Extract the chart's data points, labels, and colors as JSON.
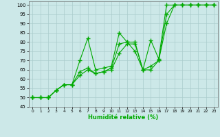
{
  "xlabel": "Humidité relative (%)",
  "background_color": "#cce8e8",
  "grid_color": "#aacccc",
  "line_color": "#00aa00",
  "xlim": [
    -0.5,
    23.5
  ],
  "ylim": [
    45,
    102
  ],
  "yticks": [
    45,
    50,
    55,
    60,
    65,
    70,
    75,
    80,
    85,
    90,
    95,
    100
  ],
  "xtick_labels": [
    "0",
    "1",
    "2",
    "3",
    "4",
    "5",
    "6",
    "7",
    "8",
    "9",
    "10",
    "11",
    "12",
    "13",
    "14",
    "15",
    "16",
    "17",
    "18",
    "19",
    "20",
    "21",
    "22",
    "23"
  ],
  "series": [
    [
      50,
      50,
      50,
      54,
      57,
      57,
      70,
      82,
      65,
      66,
      67,
      85,
      80,
      75,
      65,
      81,
      71,
      100,
      100,
      100,
      100,
      100,
      100,
      100
    ],
    [
      50,
      50,
      50,
      54,
      57,
      57,
      64,
      66,
      63,
      64,
      66,
      79,
      80,
      80,
      65,
      65,
      70,
      95,
      100,
      100,
      100,
      100,
      100,
      100
    ],
    [
      50,
      50,
      50,
      54,
      57,
      57,
      62,
      65,
      63,
      64,
      65,
      74,
      79,
      79,
      65,
      67,
      70,
      90,
      100,
      100,
      100,
      100,
      100,
      100
    ]
  ]
}
